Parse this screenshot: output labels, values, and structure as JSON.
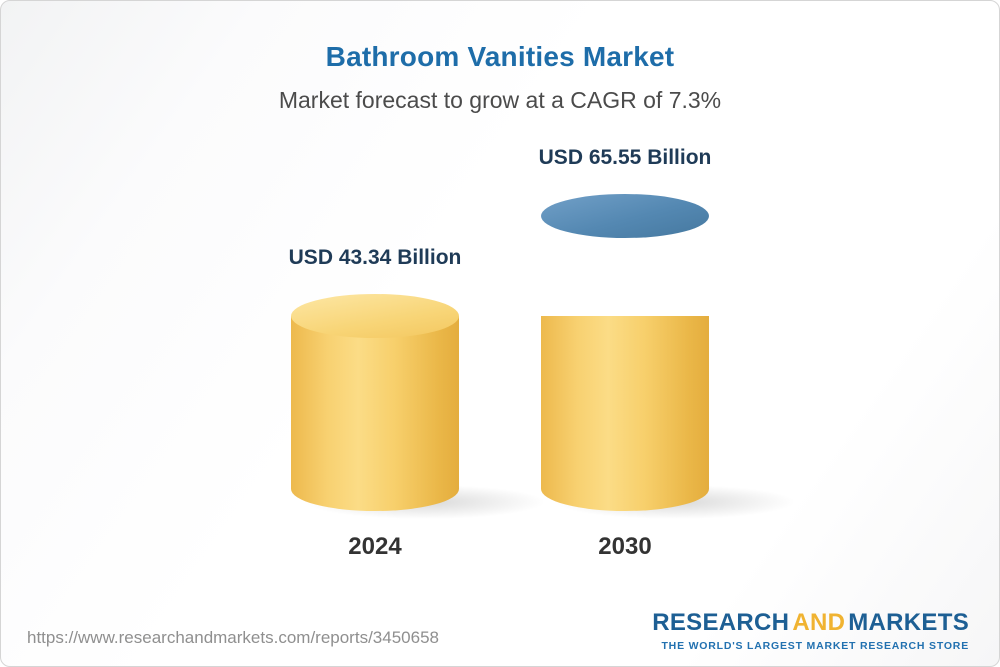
{
  "chart_data": {
    "type": "bar",
    "title": "Bathroom Vanities Market",
    "subtitle": "Market forecast to grow at a CAGR of 7.3%",
    "unit": "USD Billion",
    "categories": [
      "2024",
      "2030"
    ],
    "values": [
      43.34,
      65.55
    ],
    "value_labels": [
      "USD 43.34 Billion",
      "USD 65.55 Billion"
    ],
    "cagr_percent": 7.3,
    "legend": "none",
    "grid": false,
    "colors": {
      "bar_2024": "#F6CF6D",
      "bar_2030_base": "#F6CF6D",
      "bar_2030_growth": "#4D82AC",
      "title": "#1E6DA9",
      "value_label": "#1F3B57"
    }
  },
  "footer": {
    "url": "https://www.researchandmarkets.com/reports/3450658",
    "logo": {
      "part1": "RESEARCH",
      "part2": "AND",
      "part3": "MARKETS",
      "tagline": "THE WORLD'S LARGEST MARKET RESEARCH STORE"
    }
  }
}
